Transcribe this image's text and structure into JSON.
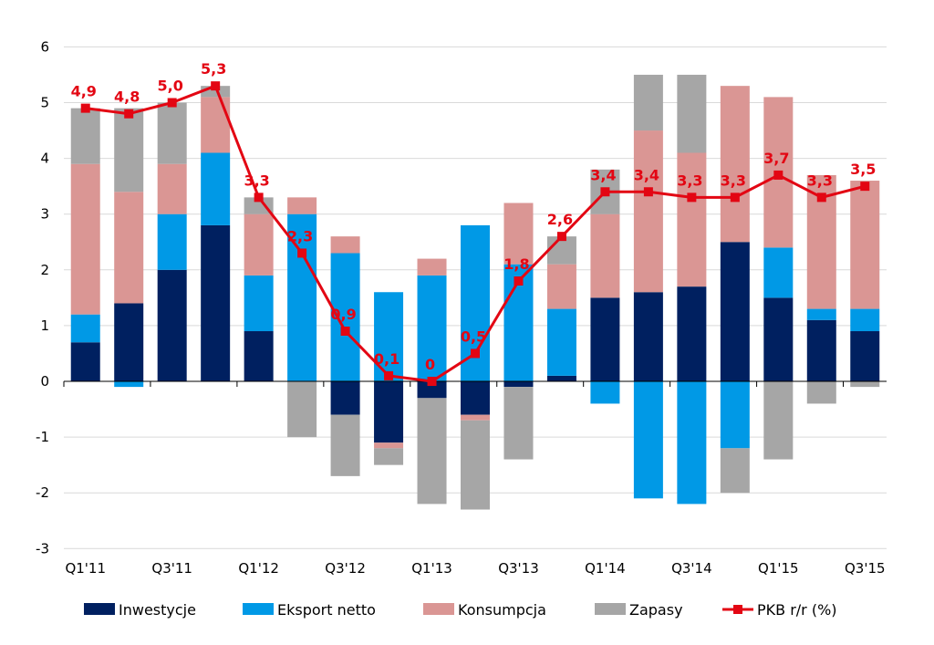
{
  "chart_data": {
    "type": "bar",
    "stacked": true,
    "categories": [
      "Q1'11",
      "Q2'11",
      "Q3'11",
      "Q4'11",
      "Q1'12",
      "Q2'12",
      "Q3'12",
      "Q4'12",
      "Q1'13",
      "Q2'13",
      "Q3'13",
      "Q4'13",
      "Q1'14",
      "Q2'14",
      "Q3'14",
      "Q4'14",
      "Q1'15",
      "Q2'15",
      "Q3'15"
    ],
    "x_tick_labels": [
      "Q1'11",
      "",
      "Q3'11",
      "",
      "Q1'12",
      "",
      "Q3'12",
      "",
      "Q1'13",
      "",
      "Q3'13",
      "",
      "Q1'14",
      "",
      "Q3'14",
      "",
      "Q1'15",
      "",
      "Q3'15"
    ],
    "ylim": [
      -3,
      6
    ],
    "yticks": [
      "-3",
      "-2",
      "-1",
      "0",
      "1",
      "2",
      "3",
      "4",
      "5",
      "6"
    ],
    "grid": true,
    "legend_position": "bottom",
    "series": [
      {
        "name": "Inwestycje",
        "type": "bar",
        "color": "#002060",
        "values": [
          0.7,
          1.4,
          2.0,
          2.8,
          0.9,
          0.0,
          -0.6,
          -1.1,
          -0.3,
          -0.6,
          -0.1,
          0.1,
          1.5,
          1.6,
          1.7,
          2.5,
          1.5,
          1.1,
          0.9
        ]
      },
      {
        "name": "Eksport netto",
        "type": "bar",
        "color": "#0099e6",
        "values": [
          0.5,
          -0.1,
          1.0,
          1.3,
          1.0,
          3.0,
          2.3,
          1.6,
          1.9,
          2.8,
          2.1,
          1.2,
          -0.4,
          -2.1,
          -2.2,
          -1.2,
          0.9,
          0.2,
          0.4
        ]
      },
      {
        "name": "Konsumpcja",
        "type": "bar",
        "color": "#da9694",
        "values": [
          2.7,
          2.0,
          0.9,
          1.0,
          1.1,
          0.3,
          0.3,
          -0.1,
          0.3,
          -0.1,
          1.1,
          0.8,
          1.5,
          2.9,
          2.4,
          2.8,
          2.7,
          2.4,
          2.3
        ]
      },
      {
        "name": "Zapasy",
        "type": "bar",
        "color": "#a6a6a6",
        "values": [
          1.0,
          1.5,
          1.1,
          0.2,
          0.3,
          -1.0,
          -1.1,
          -0.3,
          -1.9,
          -1.6,
          -1.3,
          0.5,
          0.8,
          1.0,
          1.4,
          -0.8,
          -1.4,
          -0.4,
          -0.1
        ]
      },
      {
        "name": "PKB r/r (%)",
        "type": "line",
        "color": "#e30613",
        "values": [
          4.9,
          4.8,
          5.0,
          5.3,
          3.3,
          2.3,
          0.9,
          0.1,
          0.0,
          0.5,
          1.8,
          2.6,
          3.4,
          3.4,
          3.3,
          3.3,
          3.7,
          3.3,
          3.5
        ],
        "data_labels": [
          "4,9",
          "4,8",
          "5,0",
          "5,3",
          "3,3",
          "2,3",
          "0,9",
          "0,1",
          "0",
          "0,5",
          "1,8",
          "2,6",
          "3,4",
          "3,4",
          "3,3",
          "3,3",
          "3,7",
          "3,3",
          "3,5"
        ]
      }
    ]
  },
  "legend": {
    "items": [
      {
        "label": "Inwestycje",
        "color": "#002060",
        "kind": "box"
      },
      {
        "label": "Eksport netto",
        "color": "#0099e6",
        "kind": "box"
      },
      {
        "label": "Konsumpcja",
        "color": "#da9694",
        "kind": "box"
      },
      {
        "label": "Zapasy",
        "color": "#a6a6a6",
        "kind": "box"
      },
      {
        "label": "PKB r/r (%)",
        "color": "#e30613",
        "kind": "line-marker"
      }
    ]
  }
}
